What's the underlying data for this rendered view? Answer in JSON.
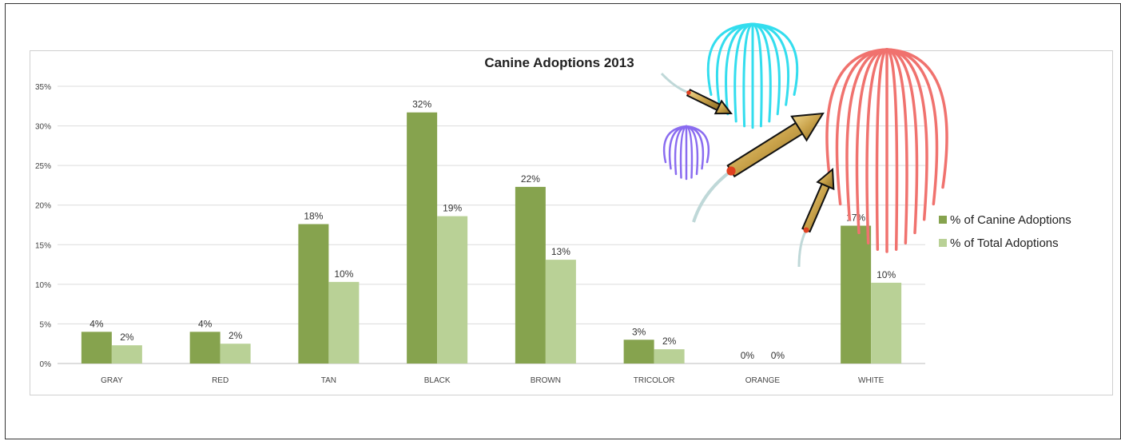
{
  "chart_data": {
    "type": "bar",
    "title": "Canine Adoptions 2013",
    "categories": [
      "GRAY",
      "RED",
      "TAN",
      "BLACK",
      "BROWN",
      "TRICOLOR",
      "ORANGE",
      "WHITE"
    ],
    "series": [
      {
        "name": "% of Canine Adoptions",
        "values": [
          4,
          4,
          17.6,
          31.7,
          22.3,
          3,
          0,
          17.4
        ],
        "labels": [
          "4%",
          "4%",
          "18%",
          "32%",
          "22%",
          "3%",
          "0%",
          "17%"
        ],
        "color": "#86a34e"
      },
      {
        "name": "% of Total Adoptions",
        "values": [
          2.3,
          2.5,
          10.3,
          18.6,
          13.1,
          1.8,
          0,
          10.2
        ],
        "labels": [
          "2%",
          "2%",
          "10%",
          "19%",
          "13%",
          "2%",
          "0%",
          "10%"
        ],
        "color": "#b9d196"
      }
    ],
    "ylim": [
      0,
      35
    ],
    "yticks": [
      0,
      5,
      10,
      15,
      20,
      25,
      30,
      35
    ],
    "ytick_labels": [
      "0%",
      "5%",
      "10%",
      "15%",
      "20%",
      "25%",
      "30%",
      "35%"
    ],
    "xlabel": "",
    "ylabel": "",
    "grid": true,
    "legend_position": "right"
  },
  "decorations": {
    "fireworks_colors": [
      "#33ddee",
      "#f0726e",
      "#8a6cf0"
    ],
    "rocket_color": "#c9a24a"
  }
}
